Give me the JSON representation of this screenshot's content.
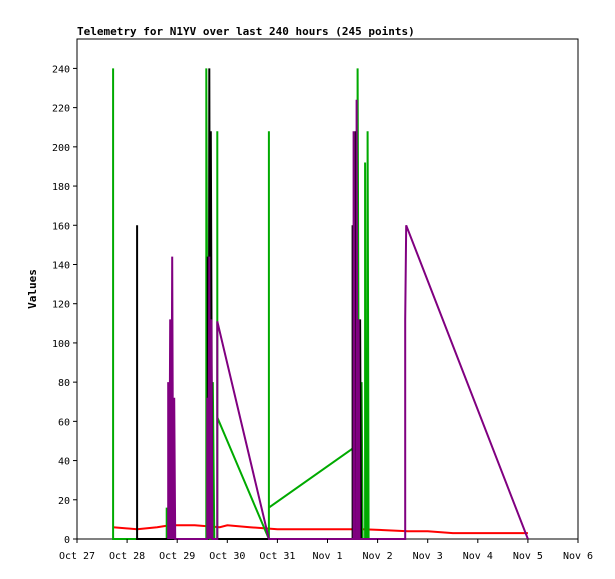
{
  "chart_data": {
    "type": "line",
    "title": "Telemetry for N1YV over last 240 hours (245 points)",
    "ylabel": "Values",
    "xlabel": "",
    "ylim": [
      0,
      255
    ],
    "y_ticks": [
      0,
      20,
      40,
      60,
      80,
      100,
      120,
      140,
      160,
      180,
      200,
      220,
      240
    ],
    "x_ticks": [
      "Oct 27",
      "Oct 28",
      "Oct 29",
      "Oct 30",
      "Oct 31",
      "Nov 1",
      "Nov 2",
      "Nov 3",
      "Nov 4",
      "Nov 5",
      "Nov 6"
    ],
    "xlim": [
      0,
      10
    ],
    "grid": false,
    "legend": "none",
    "series": [
      {
        "color": "#ff0000",
        "points": [
          [
            0.72,
            6
          ],
          [
            1.2,
            5
          ],
          [
            1.6,
            6
          ],
          [
            1.85,
            7
          ],
          [
            2.35,
            7
          ],
          [
            2.85,
            6
          ],
          [
            3.0,
            7
          ],
          [
            3.45,
            6
          ],
          [
            4.0,
            5
          ],
          [
            5.7,
            5
          ],
          [
            6.6,
            4
          ],
          [
            7.0,
            4
          ],
          [
            7.5,
            3
          ],
          [
            9.0,
            3
          ]
        ]
      },
      {
        "color": "#00aa00",
        "points": [
          [
            0.72,
            0
          ],
          [
            0.72,
            240
          ],
          [
            0.72,
            0
          ],
          [
            1.79,
            0
          ],
          [
            1.79,
            16
          ],
          [
            1.79,
            0
          ],
          [
            2.58,
            0
          ],
          [
            2.58,
            240
          ],
          [
            2.61,
            0
          ],
          [
            2.66,
            0
          ],
          [
            2.66,
            90
          ],
          [
            2.69,
            0
          ],
          [
            2.71,
            80
          ],
          [
            2.74,
            0
          ],
          [
            2.8,
            0
          ],
          [
            2.8,
            208
          ],
          [
            2.8,
            62
          ],
          [
            3.83,
            0
          ],
          [
            3.83,
            208
          ],
          [
            3.83,
            16
          ],
          [
            5.55,
            47
          ],
          [
            5.55,
            0
          ],
          [
            5.6,
            0
          ],
          [
            5.6,
            240
          ],
          [
            5.63,
            0
          ],
          [
            5.68,
            0
          ],
          [
            5.68,
            80
          ],
          [
            5.7,
            0
          ],
          [
            5.75,
            0
          ],
          [
            5.75,
            192
          ],
          [
            5.77,
            0
          ],
          [
            5.8,
            0
          ],
          [
            5.8,
            208
          ],
          [
            5.82,
            0
          ]
        ]
      },
      {
        "color": "#000000",
        "points": [
          [
            1.2,
            0
          ],
          [
            1.2,
            160
          ],
          [
            1.2,
            0
          ],
          [
            2.61,
            0
          ],
          [
            2.61,
            144
          ],
          [
            2.63,
            0
          ],
          [
            2.64,
            240
          ],
          [
            2.66,
            0
          ],
          [
            2.67,
            208
          ],
          [
            2.7,
            0
          ],
          [
            5.5,
            0
          ],
          [
            5.5,
            160
          ],
          [
            5.52,
            0
          ],
          [
            5.56,
            0
          ],
          [
            5.56,
            208
          ],
          [
            5.58,
            0
          ],
          [
            5.65,
            0
          ],
          [
            5.65,
            112
          ],
          [
            5.67,
            0
          ]
        ]
      },
      {
        "color": "#800080",
        "points": [
          [
            1.82,
            0
          ],
          [
            1.82,
            80
          ],
          [
            1.84,
            0
          ],
          [
            1.86,
            112
          ],
          [
            1.88,
            0
          ],
          [
            1.9,
            144
          ],
          [
            1.92,
            0
          ],
          [
            1.94,
            72
          ],
          [
            1.96,
            0
          ],
          [
            2.6,
            0
          ],
          [
            2.6,
            72
          ],
          [
            2.62,
            0
          ],
          [
            2.64,
            144
          ],
          [
            2.66,
            0
          ],
          [
            2.68,
            112
          ],
          [
            2.7,
            0
          ],
          [
            2.8,
            0
          ],
          [
            2.8,
            111
          ],
          [
            3.83,
            0
          ],
          [
            5.52,
            0
          ],
          [
            5.52,
            208
          ],
          [
            5.54,
            0
          ],
          [
            5.58,
            0
          ],
          [
            5.58,
            224
          ],
          [
            5.6,
            0
          ],
          [
            5.62,
            0
          ],
          [
            5.62,
            112
          ],
          [
            5.64,
            0
          ],
          [
            6.55,
            0
          ],
          [
            6.55,
            112
          ],
          [
            6.57,
            160
          ],
          [
            9.0,
            0
          ]
        ]
      }
    ]
  }
}
